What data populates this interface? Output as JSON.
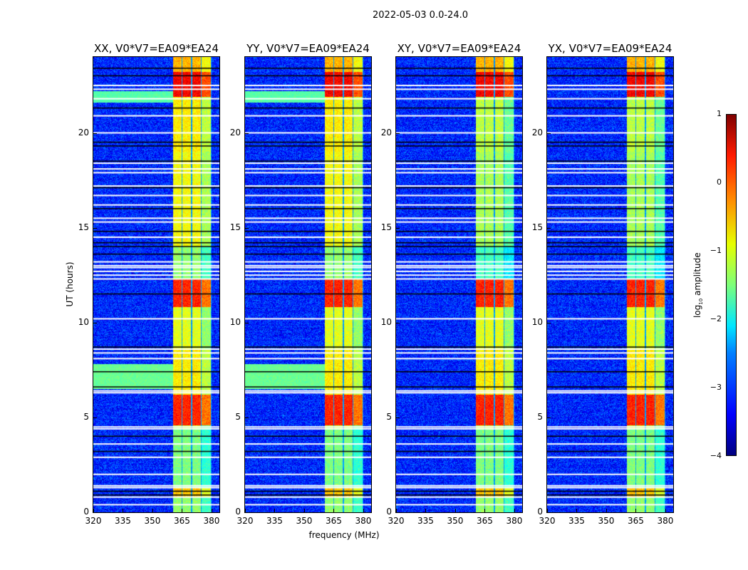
{
  "chart_data": {
    "type": "heatmap",
    "title": "2022-05-03 0.0-24.0",
    "xlabel": "frequency (MHz)",
    "ylabel": "UT (hours)",
    "xlim": [
      320,
      384
    ],
    "ylim": [
      0,
      24
    ],
    "xticks": [
      "320",
      "335",
      "350",
      "365",
      "380"
    ],
    "xtick_values": [
      320,
      335,
      350,
      365,
      380
    ],
    "yticks": [
      "0",
      "5",
      "10",
      "15",
      "20"
    ],
    "ytick_values": [
      0,
      5,
      10,
      15,
      20
    ],
    "panels": [
      {
        "id": "xx",
        "title": "XX, V0*V7=EA09*EA24",
        "broadband_cyan": true
      },
      {
        "id": "yy",
        "title": "YY, V0*V7=EA09*EA24",
        "broadband_cyan": true
      },
      {
        "id": "xy",
        "title": "XY, V0*V7=EA09*EA24",
        "broadband_cyan": false
      },
      {
        "id": "yx",
        "title": "YX, V0*V7=EA09*EA24",
        "broadband_cyan": false
      }
    ],
    "background_log_amplitude": -3.2,
    "rfi_channel_blocks_mhz": [
      [
        360.5,
        364.8
      ],
      [
        365.3,
        369.6
      ],
      [
        370.1,
        374.5
      ],
      [
        375.0,
        379.6
      ]
    ],
    "rfi_level_segments": [
      {
        "hours": [
          0,
          0.8
        ],
        "level": -1.4
      },
      {
        "hours": [
          0.8,
          1.3
        ],
        "level": -0.6
      },
      {
        "hours": [
          1.3,
          4.4
        ],
        "level": -1.5
      },
      {
        "hours": [
          4.6,
          6.2
        ],
        "level": 0.2
      },
      {
        "hours": [
          6.2,
          8.6
        ],
        "level": -0.8
      },
      {
        "hours": [
          8.6,
          10.8
        ],
        "level": -1.0
      },
      {
        "hours": [
          10.8,
          12.3
        ],
        "level": 0.2
      },
      {
        "hours": [
          12.3,
          14.0
        ],
        "level": -1.4
      },
      {
        "hours": [
          14.0,
          19.0
        ],
        "level": -0.9
      },
      {
        "hours": [
          19.0,
          21.9
        ],
        "level": -0.8
      },
      {
        "hours": [
          21.9,
          23.2
        ],
        "level": 0.4
      },
      {
        "hours": [
          23.2,
          24
        ],
        "level": -0.5
      }
    ],
    "broadband_segments": [
      {
        "hours": [
          6.5,
          7.8
        ],
        "level": -1.6
      },
      {
        "hours": [
          21.6,
          22.2
        ],
        "level": -1.7
      }
    ],
    "flagged_hours_white": [
      0.4,
      0.8,
      1.3,
      1.4,
      2.0,
      2.9,
      3.6,
      4.4,
      4.5,
      6.3,
      6.4,
      8.1,
      8.4,
      8.6,
      10.2,
      12.3,
      12.5,
      12.7,
      12.9,
      13.0,
      13.2,
      14.5,
      15.3,
      15.5,
      16.2,
      16.7,
      17.2,
      17.9,
      18.1,
      18.4,
      20.0,
      20.9,
      21.8,
      22.3,
      22.5
    ],
    "flagged_hours_black": [
      0.9,
      1.1,
      3.2,
      4.0,
      6.6,
      7.4,
      8.7,
      11.5,
      13.6,
      14.0,
      14.2,
      14.8,
      16.0,
      17.1,
      18.5,
      19.3,
      19.5,
      21.3,
      23.0,
      23.4
    ],
    "colorbar": {
      "label_prefix": "log",
      "label_sub": "10",
      "label_suffix": " amplitude",
      "range": [
        -4,
        1
      ],
      "colormap": "jet",
      "ticks": [
        "1",
        "0",
        "−1",
        "−2",
        "−3",
        "−4"
      ],
      "tick_values": [
        1,
        0,
        -1,
        -2,
        -3,
        -4
      ]
    }
  }
}
